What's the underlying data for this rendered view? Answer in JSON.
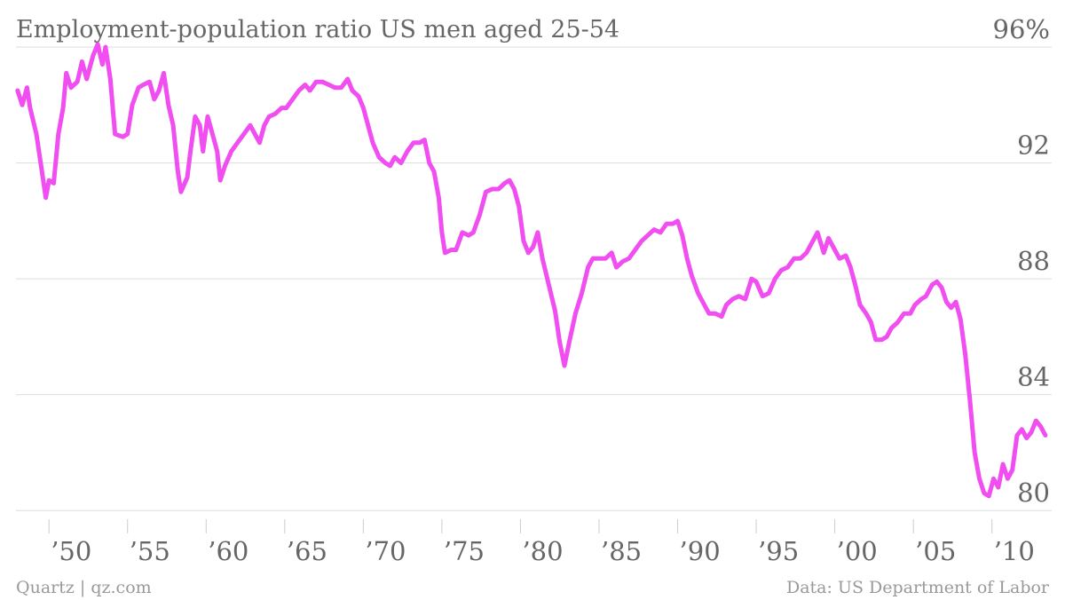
{
  "chart_data": {
    "type": "line",
    "title": "Employment-population ratio US men aged 25-54",
    "credit": "Quartz | qz.com",
    "source": "Data: US Department of Labor",
    "x": [
      1948.0,
      1948.3,
      1948.6,
      1948.8,
      1949.2,
      1949.5,
      1949.8,
      1950.0,
      1950.3,
      1950.6,
      1950.9,
      1951.1,
      1951.4,
      1951.8,
      1952.1,
      1952.4,
      1952.8,
      1953.1,
      1953.4,
      1953.6,
      1953.9,
      1954.2,
      1954.7,
      1955.0,
      1955.3,
      1955.7,
      1956.0,
      1956.4,
      1956.7,
      1957.0,
      1957.3,
      1957.6,
      1957.9,
      1958.2,
      1958.4,
      1958.8,
      1959.0,
      1959.3,
      1959.6,
      1959.8,
      1960.1,
      1960.4,
      1960.7,
      1960.9,
      1961.2,
      1961.6,
      1962.0,
      1962.4,
      1962.8,
      1963.1,
      1963.4,
      1963.7,
      1964.0,
      1964.4,
      1964.8,
      1965.1,
      1965.5,
      1965.9,
      1966.3,
      1966.6,
      1967.0,
      1967.4,
      1967.8,
      1968.2,
      1968.6,
      1969.0,
      1969.3,
      1969.7,
      1970.0,
      1970.3,
      1970.6,
      1971.0,
      1971.4,
      1971.7,
      1972.0,
      1972.4,
      1972.8,
      1973.2,
      1973.6,
      1973.9,
      1974.2,
      1974.5,
      1974.8,
      1975.0,
      1975.2,
      1975.6,
      1975.9,
      1976.3,
      1976.7,
      1977.0,
      1977.4,
      1977.8,
      1978.2,
      1978.6,
      1979.0,
      1979.3,
      1979.6,
      1979.9,
      1980.2,
      1980.5,
      1980.8,
      1981.1,
      1981.4,
      1981.8,
      1982.2,
      1982.5,
      1982.8,
      1983.1,
      1983.5,
      1983.9,
      1984.3,
      1984.6,
      1985.0,
      1985.4,
      1985.8,
      1986.1,
      1986.5,
      1986.9,
      1987.3,
      1987.7,
      1988.1,
      1988.5,
      1988.9,
      1989.3,
      1989.7,
      1990.0,
      1990.3,
      1990.6,
      1990.9,
      1991.3,
      1991.7,
      1992.0,
      1992.4,
      1992.8,
      1993.1,
      1993.5,
      1993.9,
      1994.3,
      1994.7,
      1995.0,
      1995.4,
      1995.8,
      1996.2,
      1996.6,
      1997.0,
      1997.4,
      1997.8,
      1998.2,
      1998.6,
      1998.9,
      1999.3,
      1999.6,
      2000.0,
      2000.3,
      2000.7,
      2001.0,
      2001.3,
      2001.6,
      2002.0,
      2002.3,
      2002.6,
      2003.0,
      2003.3,
      2003.6,
      2004.0,
      2004.4,
      2004.8,
      2005.1,
      2005.5,
      2005.8,
      2006.2,
      2006.5,
      2006.8,
      2007.1,
      2007.4,
      2007.7,
      2008.0,
      2008.3,
      2008.6,
      2008.9,
      2009.2,
      2009.5,
      2009.8,
      2010.1,
      2010.4,
      2010.7,
      2011.0,
      2011.3,
      2011.6,
      2011.9,
      2012.2,
      2012.5,
      2012.8,
      2013.1,
      2013.4
    ],
    "values": [
      94.5,
      94.0,
      94.6,
      93.9,
      93.0,
      91.9,
      90.8,
      91.4,
      91.3,
      93.0,
      93.9,
      95.1,
      94.6,
      94.8,
      95.5,
      94.9,
      95.7,
      96.1,
      95.4,
      96.0,
      94.9,
      93.0,
      92.9,
      93.0,
      94.0,
      94.6,
      94.7,
      94.8,
      94.2,
      94.5,
      95.1,
      94.0,
      93.3,
      91.7,
      91.0,
      91.5,
      92.4,
      93.6,
      93.3,
      92.4,
      93.6,
      93.0,
      92.4,
      91.4,
      91.9,
      92.4,
      92.7,
      93.0,
      93.3,
      93.0,
      92.7,
      93.3,
      93.6,
      93.7,
      93.9,
      93.9,
      94.2,
      94.5,
      94.7,
      94.5,
      94.8,
      94.8,
      94.7,
      94.6,
      94.6,
      94.9,
      94.5,
      94.3,
      93.9,
      93.3,
      92.7,
      92.2,
      92.0,
      91.9,
      92.2,
      92.0,
      92.4,
      92.7,
      92.7,
      92.8,
      92.0,
      91.7,
      90.8,
      89.6,
      88.9,
      89.0,
      89.0,
      89.6,
      89.5,
      89.6,
      90.2,
      91.0,
      91.1,
      91.1,
      91.3,
      91.4,
      91.1,
      90.5,
      89.3,
      88.9,
      89.1,
      89.6,
      88.7,
      87.8,
      86.9,
      85.8,
      85.0,
      85.8,
      86.8,
      87.5,
      88.4,
      88.7,
      88.7,
      88.7,
      88.9,
      88.4,
      88.6,
      88.7,
      89.0,
      89.3,
      89.5,
      89.7,
      89.6,
      89.9,
      89.9,
      90.0,
      89.5,
      88.7,
      88.1,
      87.5,
      87.1,
      86.8,
      86.8,
      86.7,
      87.1,
      87.3,
      87.4,
      87.3,
      88.0,
      87.9,
      87.4,
      87.5,
      88.0,
      88.3,
      88.4,
      88.7,
      88.7,
      88.9,
      89.3,
      89.6,
      88.9,
      89.4,
      89.0,
      88.7,
      88.8,
      88.4,
      87.8,
      87.1,
      86.8,
      86.5,
      85.9,
      85.9,
      86.0,
      86.3,
      86.5,
      86.8,
      86.8,
      87.1,
      87.3,
      87.4,
      87.8,
      87.9,
      87.7,
      87.2,
      87.0,
      87.2,
      86.6,
      85.4,
      83.8,
      82.0,
      81.1,
      80.6,
      80.5,
      81.1,
      80.8,
      81.6,
      81.1,
      81.4,
      82.6,
      82.8,
      82.5,
      82.7,
      83.1,
      82.9,
      82.6
    ],
    "color": "#f04ef0",
    "xlim": [
      1947.9,
      2013.8
    ],
    "ylim": [
      79.7,
      96.4
    ],
    "xticks": [
      {
        "value": 1950,
        "label": "’50"
      },
      {
        "value": 1955,
        "label": "’55"
      },
      {
        "value": 1960,
        "label": "’60"
      },
      {
        "value": 1965,
        "label": "’65"
      },
      {
        "value": 1970,
        "label": "’70"
      },
      {
        "value": 1975,
        "label": "’75"
      },
      {
        "value": 1980,
        "label": "’80"
      },
      {
        "value": 1985,
        "label": "’85"
      },
      {
        "value": 1990,
        "label": "’90"
      },
      {
        "value": 1995,
        "label": "’95"
      },
      {
        "value": 2000,
        "label": "’00"
      },
      {
        "value": 2005,
        "label": "’05"
      },
      {
        "value": 2010,
        "label": "’10"
      }
    ],
    "yticks": [
      80,
      84,
      88,
      92,
      {
        "value": 96,
        "label": "96%"
      }
    ],
    "grid": true
  }
}
